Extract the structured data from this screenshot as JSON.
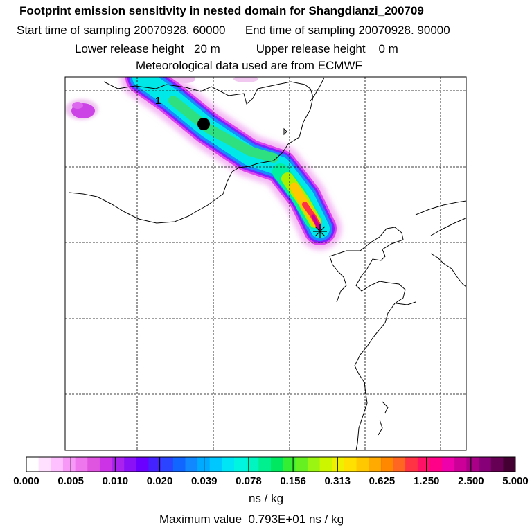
{
  "header": {
    "title": "Footprint emission sensitivity in nested domain for Shangdianzi_200709",
    "start_label": "Start time of sampling",
    "start_value": "20070928. 60000",
    "end_label": "End time of sampling",
    "end_value": "20070928. 90000",
    "lower_label": "Lower release height",
    "lower_value": "20 m",
    "upper_label": "Upper release height",
    "upper_value": "0 m",
    "met_line": "Meteorological data used are from ECMWF"
  },
  "map": {
    "plume_label": "1",
    "release_marker": "star-asterisk",
    "position_marker": "black-dot"
  },
  "colorbar": {
    "tick_labels": [
      "0.000",
      "0.005",
      "0.010",
      "0.020",
      "0.039",
      "0.078",
      "0.156",
      "0.313",
      "0.625",
      "1.250",
      "2.500",
      "5.000"
    ],
    "units": "ns / kg",
    "max_label": "Maximum value",
    "max_value": "0.793E+01 ns / kg",
    "colors": [
      "#ffffff",
      "#ffe0ff",
      "#ffc0ff",
      "#f79af7",
      "#ee77ee",
      "#e055e0",
      "#cc33e6",
      "#aa22ee",
      "#8a11f5",
      "#6a00ff",
      "#4422ff",
      "#2a44ff",
      "#1166ff",
      "#1188ff",
      "#00aaff",
      "#00c8ff",
      "#00e5f5",
      "#00f5e0",
      "#00f5c0",
      "#00f090",
      "#00e860",
      "#33ee33",
      "#66f022",
      "#99f511",
      "#ccf500",
      "#eef000",
      "#ffe000",
      "#ffc800",
      "#ffaa00",
      "#ff8800",
      "#ff6622",
      "#ff3344",
      "#ff1166",
      "#ff0088",
      "#ee00aa",
      "#cc0099",
      "#aa0088",
      "#880077",
      "#660055",
      "#440033"
    ]
  }
}
